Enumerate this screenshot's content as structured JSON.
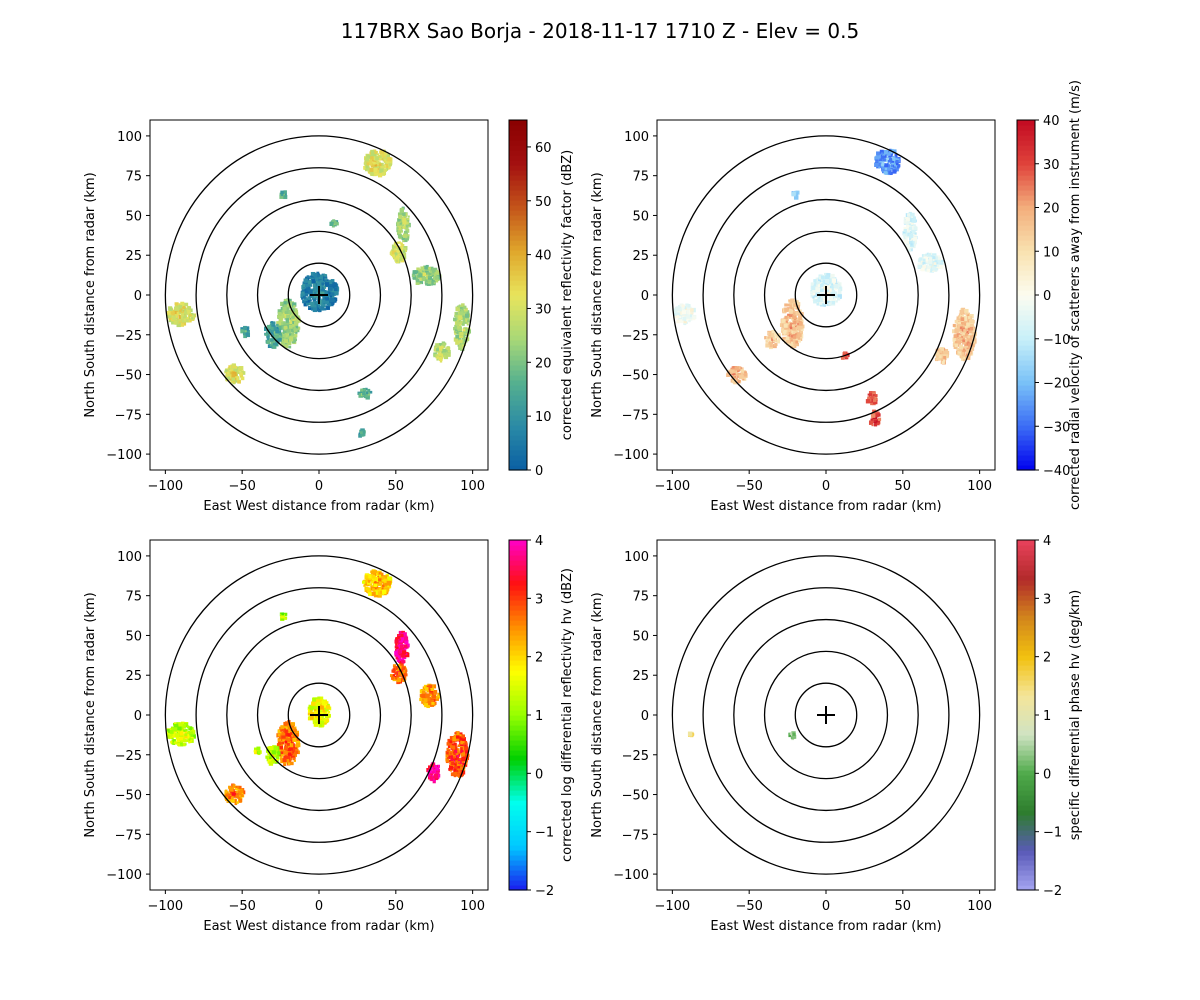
{
  "title": "117BRX Sao Borja - 2018-11-17 1710 Z -  Elev = 0.5",
  "chart_data": [
    {
      "type": "heatmap",
      "id": "reflectivity",
      "xlabel": "East West distance from radar (km)",
      "ylabel": "North South distance from radar (km)",
      "xlim": [
        -110,
        110
      ],
      "ylim": [
        -110,
        110
      ],
      "xticks": [
        -100,
        -50,
        0,
        50,
        100
      ],
      "yticks": [
        -100,
        -75,
        -50,
        -25,
        0,
        25,
        50,
        75,
        100
      ],
      "range_rings_km": [
        20,
        40,
        60,
        80,
        100
      ],
      "colorbar": {
        "label": "corrected equivalent reflectivity factor (dBZ)",
        "range": [
          0,
          65
        ],
        "ticks": [
          0,
          10,
          20,
          30,
          40,
          50,
          60
        ],
        "colors": [
          "#0a5fa3",
          "#2a8aa6",
          "#55b08f",
          "#a8d877",
          "#e8e45c",
          "#e0a72c",
          "#c4551a",
          "#a41010",
          "#8a0000"
        ]
      },
      "echoes": [
        {
          "x": 0,
          "y": 2,
          "rx": 12,
          "ry": 12,
          "value": 5
        },
        {
          "x": -20,
          "y": -18,
          "rx": 7,
          "ry": 15,
          "value": 22
        },
        {
          "x": -30,
          "y": -25,
          "rx": 5,
          "ry": 8,
          "value": 12
        },
        {
          "x": 38,
          "y": 83,
          "rx": 9,
          "ry": 8,
          "value": 30
        },
        {
          "x": 55,
          "y": 44,
          "rx": 4,
          "ry": 11,
          "value": 22
        },
        {
          "x": 52,
          "y": 27,
          "rx": 5,
          "ry": 6,
          "value": 28
        },
        {
          "x": 70,
          "y": 12,
          "rx": 9,
          "ry": 6,
          "value": 22
        },
        {
          "x": 93,
          "y": -20,
          "rx": 5,
          "ry": 14,
          "value": 24
        },
        {
          "x": 80,
          "y": -36,
          "rx": 5,
          "ry": 6,
          "value": 26
        },
        {
          "x": -90,
          "y": -12,
          "rx": 9,
          "ry": 7,
          "value": 30
        },
        {
          "x": -55,
          "y": -50,
          "rx": 6,
          "ry": 6,
          "value": 30
        },
        {
          "x": -48,
          "y": -23,
          "rx": 3,
          "ry": 3,
          "value": 12
        },
        {
          "x": -23,
          "y": 63,
          "rx": 2,
          "ry": 2,
          "value": 15
        },
        {
          "x": 10,
          "y": 45,
          "rx": 2,
          "ry": 2,
          "value": 15
        },
        {
          "x": 30,
          "y": -62,
          "rx": 4,
          "ry": 3,
          "value": 15
        },
        {
          "x": 28,
          "y": -87,
          "rx": 2,
          "ry": 2,
          "value": 12
        }
      ]
    },
    {
      "type": "heatmap",
      "id": "velocity",
      "xlabel": "East West distance from radar (km)",
      "ylabel": "North South distance from radar (km)",
      "xlim": [
        -110,
        110
      ],
      "ylim": [
        -110,
        110
      ],
      "xticks": [
        -100,
        -50,
        0,
        50,
        100
      ],
      "yticks": [
        -100,
        -75,
        -50,
        -25,
        0,
        25,
        50,
        75,
        100
      ],
      "range_rings_km": [
        20,
        40,
        60,
        80,
        100
      ],
      "colorbar": {
        "label": "corrected radial velocity of scatterers away from instrument (m/s)",
        "range": [
          -40,
          40
        ],
        "ticks": [
          -40,
          -30,
          -20,
          -10,
          0,
          10,
          20,
          30,
          40
        ],
        "colors": [
          "#0000ee",
          "#3b6cf5",
          "#79c1f7",
          "#c8f0f9",
          "#fcfcf0",
          "#f9e2b0",
          "#f3ae7c",
          "#e0433b",
          "#c20a22"
        ]
      },
      "echoes": [
        {
          "x": 0,
          "y": 3,
          "rx": 10,
          "ry": 10,
          "value": -7
        },
        {
          "x": -22,
          "y": -18,
          "rx": 7,
          "ry": 15,
          "value": 14
        },
        {
          "x": -35,
          "y": -28,
          "rx": 5,
          "ry": 5,
          "value": 12
        },
        {
          "x": 40,
          "y": 84,
          "rx": 8,
          "ry": 8,
          "value": -26
        },
        {
          "x": 55,
          "y": 40,
          "rx": 4,
          "ry": 12,
          "value": -7
        },
        {
          "x": 68,
          "y": 20,
          "rx": 8,
          "ry": 6,
          "value": -6
        },
        {
          "x": 90,
          "y": -25,
          "rx": 7,
          "ry": 16,
          "value": 14
        },
        {
          "x": 75,
          "y": -38,
          "rx": 4,
          "ry": 5,
          "value": 14
        },
        {
          "x": -92,
          "y": -12,
          "rx": 7,
          "ry": 6,
          "value": -3
        },
        {
          "x": -58,
          "y": -50,
          "rx": 6,
          "ry": 5,
          "value": 16
        },
        {
          "x": 30,
          "y": -65,
          "rx": 3,
          "ry": 4,
          "value": 28
        },
        {
          "x": 32,
          "y": -78,
          "rx": 3,
          "ry": 5,
          "value": 28
        },
        {
          "x": -20,
          "y": 63,
          "rx": 2,
          "ry": 2,
          "value": -18
        },
        {
          "x": 12,
          "y": -38,
          "rx": 2,
          "ry": 2,
          "value": 30
        }
      ]
    },
    {
      "type": "heatmap",
      "id": "zdr",
      "xlabel": "East West distance from radar (km)",
      "ylabel": "North South distance from radar (km)",
      "xlim": [
        -110,
        110
      ],
      "ylim": [
        -110,
        110
      ],
      "xticks": [
        -100,
        -50,
        0,
        50,
        100
      ],
      "yticks": [
        -100,
        -75,
        -50,
        -25,
        0,
        25,
        50,
        75,
        100
      ],
      "range_rings_km": [
        20,
        40,
        60,
        80,
        100
      ],
      "colorbar": {
        "label": "corrected log differential reflectivity hv (dBZ)",
        "range": [
          -2,
          4
        ],
        "ticks": [
          -2,
          -1,
          0,
          1,
          2,
          3,
          4
        ],
        "colors": [
          "#1b1bee",
          "#00c8ff",
          "#00ffee",
          "#00d000",
          "#96ff00",
          "#ffff00",
          "#ff9000",
          "#ff1010",
          "#ff00c8"
        ]
      },
      "echoes": [
        {
          "x": 0,
          "y": 2,
          "rx": 7,
          "ry": 9,
          "value": 1.6
        },
        {
          "x": -20,
          "y": -18,
          "rx": 7,
          "ry": 14,
          "value": 2.5
        },
        {
          "x": -30,
          "y": -25,
          "rx": 4,
          "ry": 6,
          "value": 1.2
        },
        {
          "x": 38,
          "y": 83,
          "rx": 9,
          "ry": 8,
          "value": 2.0
        },
        {
          "x": 54,
          "y": 42,
          "rx": 4,
          "ry": 10,
          "value": 3.6
        },
        {
          "x": 52,
          "y": 26,
          "rx": 5,
          "ry": 6,
          "value": 2.6
        },
        {
          "x": 72,
          "y": 12,
          "rx": 6,
          "ry": 7,
          "value": 2.4
        },
        {
          "x": 90,
          "y": -25,
          "rx": 7,
          "ry": 14,
          "value": 2.8
        },
        {
          "x": 75,
          "y": -36,
          "rx": 4,
          "ry": 6,
          "value": 3.8
        },
        {
          "x": -90,
          "y": -12,
          "rx": 9,
          "ry": 7,
          "value": 1.2
        },
        {
          "x": -55,
          "y": -50,
          "rx": 6,
          "ry": 6,
          "value": 2.4
        },
        {
          "x": -23,
          "y": 62,
          "rx": 2,
          "ry": 2,
          "value": 1.0
        },
        {
          "x": -40,
          "y": -23,
          "rx": 2,
          "ry": 2,
          "value": 1.2
        }
      ]
    },
    {
      "type": "heatmap",
      "id": "kdp",
      "xlabel": "East West distance from radar (km)",
      "ylabel": "North South distance from radar (km)",
      "xlim": [
        -110,
        110
      ],
      "ylim": [
        -110,
        110
      ],
      "xticks": [
        -100,
        -50,
        0,
        50,
        100
      ],
      "yticks": [
        -100,
        -75,
        -50,
        -25,
        0,
        25,
        50,
        75,
        100
      ],
      "range_rings_km": [
        20,
        40,
        60,
        80,
        100
      ],
      "colorbar": {
        "label": "specific differential phase hv (deg/km)",
        "range": [
          -2,
          4
        ],
        "ticks": [
          -2,
          -1,
          0,
          1,
          2,
          3,
          4
        ],
        "colors": [
          "#a6a6f2",
          "#5a5ab8",
          "#2e7d2e",
          "#4faa4a",
          "#d0e3c3",
          "#f4e59a",
          "#f2c10f",
          "#d2861c",
          "#b22a2a",
          "#e8425c"
        ]
      },
      "echoes": [
        {
          "x": -88,
          "y": -12,
          "rx": 2,
          "ry": 1,
          "value": 1.2
        },
        {
          "x": -22,
          "y": -13,
          "rx": 1.5,
          "ry": 2,
          "value": 0.2
        }
      ]
    }
  ]
}
